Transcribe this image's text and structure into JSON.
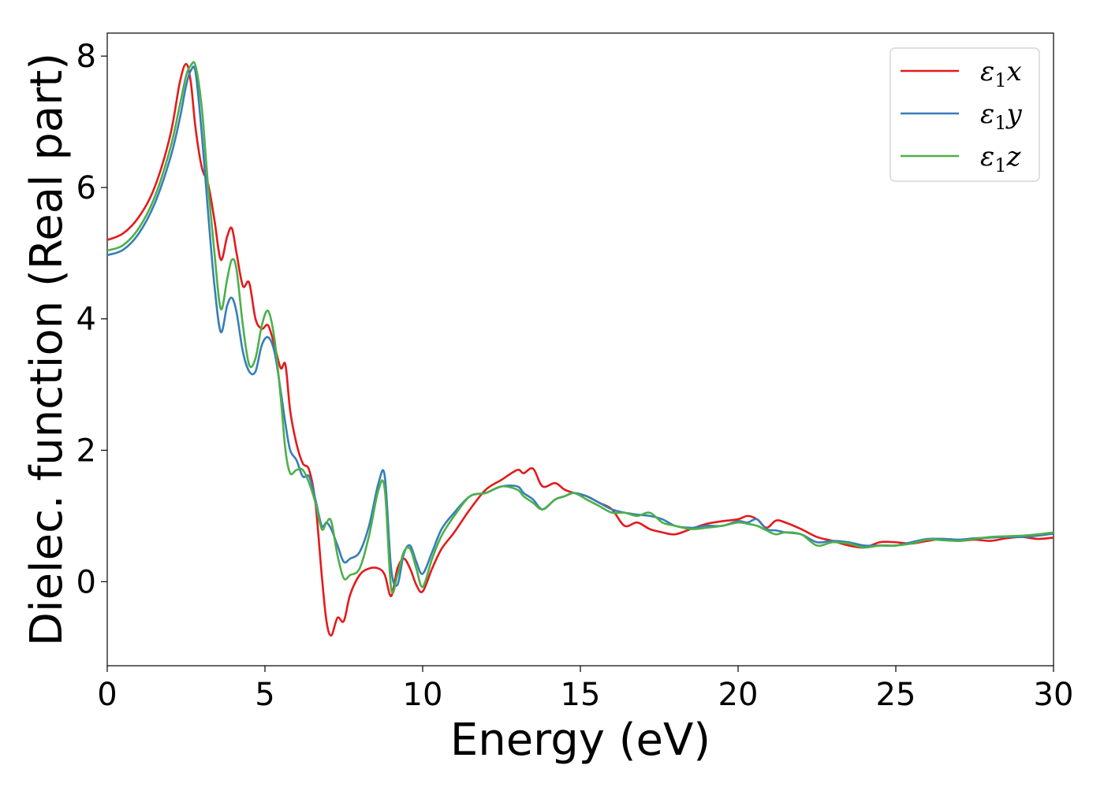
{
  "chart_data": {
    "type": "line",
    "title": "",
    "xlabel": "Energy (eV)",
    "ylabel": "Dielec. function (Real part)",
    "xlim": [
      0,
      30
    ],
    "ylim": [
      -1.28,
      8.35
    ],
    "xticks": [
      0,
      5,
      10,
      15,
      20,
      25,
      30
    ],
    "yticks": [
      0,
      2,
      4,
      6,
      8
    ],
    "grid": false,
    "legend_placement": "top-right",
    "series": [
      {
        "name": "ε1x",
        "legend_base": "ε",
        "legend_sub": "1",
        "legend_suffix": "x",
        "color": "#e41a1c",
        "x": [
          0,
          0.5,
          1.0,
          1.5,
          2.0,
          2.3,
          2.5,
          2.65,
          2.8,
          3.0,
          3.2,
          3.4,
          3.6,
          3.8,
          3.95,
          4.1,
          4.3,
          4.5,
          4.7,
          4.9,
          5.1,
          5.3,
          5.5,
          5.65,
          5.8,
          6.0,
          6.2,
          6.4,
          6.6,
          6.8,
          6.95,
          7.1,
          7.3,
          7.5,
          7.7,
          8.0,
          8.3,
          8.6,
          8.8,
          9.0,
          9.2,
          9.4,
          9.6,
          9.8,
          10.0,
          10.3,
          10.6,
          11.0,
          11.5,
          12.0,
          12.5,
          13.0,
          13.2,
          13.5,
          13.8,
          14.2,
          14.5,
          14.8,
          15.2,
          15.6,
          16.0,
          16.4,
          16.8,
          17.2,
          17.6,
          18.0,
          18.5,
          19.0,
          19.5,
          20.0,
          20.3,
          20.6,
          20.9,
          21.2,
          21.5,
          22.0,
          22.5,
          23.0,
          23.5,
          24.0,
          24.5,
          25.0,
          25.5,
          26.0,
          26.5,
          27.0,
          27.5,
          28.0,
          28.5,
          29.0,
          29.5,
          30.0
        ],
        "y": [
          5.2,
          5.3,
          5.55,
          6.0,
          6.8,
          7.6,
          7.88,
          7.6,
          6.9,
          6.3,
          6.05,
          5.5,
          4.9,
          5.25,
          5.38,
          5.0,
          4.5,
          4.55,
          4.0,
          3.85,
          3.9,
          3.6,
          3.25,
          3.3,
          2.6,
          2.1,
          1.8,
          1.7,
          1.2,
          0.1,
          -0.6,
          -0.82,
          -0.55,
          -0.6,
          -0.2,
          0.1,
          0.2,
          0.2,
          0.1,
          -0.22,
          0.2,
          0.35,
          0.2,
          -0.05,
          -0.15,
          0.2,
          0.5,
          0.75,
          1.1,
          1.4,
          1.55,
          1.7,
          1.65,
          1.72,
          1.45,
          1.5,
          1.4,
          1.35,
          1.3,
          1.2,
          1.1,
          0.85,
          0.9,
          0.8,
          0.75,
          0.72,
          0.8,
          0.88,
          0.92,
          0.95,
          1.0,
          0.95,
          0.82,
          0.93,
          0.9,
          0.8,
          0.68,
          0.62,
          0.55,
          0.52,
          0.6,
          0.6,
          0.58,
          0.62,
          0.65,
          0.62,
          0.64,
          0.62,
          0.66,
          0.68,
          0.65,
          0.67
        ]
      },
      {
        "name": "ε1y",
        "legend_base": "ε",
        "legend_sub": "1",
        "legend_suffix": "y",
        "color": "#377eb8",
        "x": [
          0,
          0.5,
          1.0,
          1.5,
          2.0,
          2.3,
          2.5,
          2.65,
          2.8,
          3.0,
          3.2,
          3.4,
          3.6,
          3.8,
          3.95,
          4.1,
          4.3,
          4.5,
          4.7,
          4.9,
          5.1,
          5.3,
          5.5,
          5.65,
          5.8,
          6.0,
          6.2,
          6.4,
          6.6,
          6.8,
          6.95,
          7.1,
          7.3,
          7.5,
          7.7,
          8.0,
          8.3,
          8.6,
          8.8,
          9.0,
          9.2,
          9.4,
          9.6,
          9.8,
          10.0,
          10.3,
          10.6,
          11.0,
          11.5,
          12.0,
          12.5,
          13.0,
          13.2,
          13.5,
          13.8,
          14.2,
          14.5,
          14.8,
          15.2,
          15.6,
          16.0,
          16.4,
          16.8,
          17.2,
          17.6,
          18.0,
          18.5,
          19.0,
          19.5,
          20.0,
          20.3,
          20.6,
          20.9,
          21.2,
          21.5,
          22.0,
          22.5,
          23.0,
          23.5,
          24.0,
          24.5,
          25.0,
          25.5,
          26.0,
          26.5,
          27.0,
          27.5,
          28.0,
          28.5,
          29.0,
          29.5,
          30.0
        ],
        "y": [
          4.97,
          5.05,
          5.3,
          5.75,
          6.45,
          7.05,
          7.55,
          7.78,
          7.75,
          6.8,
          5.6,
          4.5,
          3.8,
          4.2,
          4.32,
          4.1,
          3.5,
          3.2,
          3.2,
          3.6,
          3.72,
          3.5,
          2.9,
          2.4,
          2.0,
          1.85,
          1.6,
          1.6,
          1.25,
          0.85,
          0.9,
          0.8,
          0.55,
          0.3,
          0.35,
          0.45,
          0.85,
          1.5,
          1.6,
          0.2,
          -0.05,
          0.42,
          0.55,
          0.3,
          0.12,
          0.45,
          0.8,
          1.05,
          1.3,
          1.35,
          1.45,
          1.45,
          1.35,
          1.25,
          1.1,
          1.25,
          1.3,
          1.35,
          1.3,
          1.2,
          1.1,
          1.05,
          1.02,
          1.0,
          0.95,
          0.85,
          0.82,
          0.85,
          0.85,
          0.92,
          0.9,
          0.95,
          0.8,
          0.78,
          0.75,
          0.72,
          0.6,
          0.62,
          0.6,
          0.55,
          0.55,
          0.55,
          0.6,
          0.65,
          0.65,
          0.64,
          0.66,
          0.67,
          0.68,
          0.68,
          0.7,
          0.73
        ]
      },
      {
        "name": "ε1z",
        "legend_base": "ε",
        "legend_sub": "1",
        "legend_suffix": "z",
        "color": "#4daf4a",
        "x": [
          0,
          0.5,
          1.0,
          1.5,
          2.0,
          2.3,
          2.5,
          2.65,
          2.8,
          3.0,
          3.2,
          3.4,
          3.6,
          3.8,
          3.95,
          4.1,
          4.3,
          4.5,
          4.7,
          4.9,
          5.1,
          5.3,
          5.5,
          5.65,
          5.8,
          6.0,
          6.2,
          6.4,
          6.6,
          6.8,
          6.95,
          7.1,
          7.3,
          7.5,
          7.7,
          8.0,
          8.3,
          8.6,
          8.8,
          9.0,
          9.2,
          9.4,
          9.6,
          9.8,
          10.0,
          10.3,
          10.6,
          11.0,
          11.5,
          12.0,
          12.5,
          13.0,
          13.2,
          13.5,
          13.8,
          14.2,
          14.5,
          14.8,
          15.2,
          15.6,
          16.0,
          16.4,
          16.8,
          17.2,
          17.6,
          18.0,
          18.5,
          19.0,
          19.5,
          20.0,
          20.3,
          20.6,
          20.9,
          21.2,
          21.5,
          22.0,
          22.5,
          23.0,
          23.5,
          24.0,
          24.5,
          25.0,
          25.5,
          26.0,
          26.5,
          27.0,
          27.5,
          28.0,
          28.5,
          29.0,
          29.5,
          30.0
        ],
        "y": [
          5.04,
          5.12,
          5.38,
          5.85,
          6.6,
          7.25,
          7.7,
          7.86,
          7.85,
          7.2,
          6.0,
          5.0,
          4.15,
          4.6,
          4.9,
          4.75,
          3.9,
          3.3,
          3.4,
          3.9,
          4.12,
          3.7,
          2.8,
          2.0,
          1.65,
          1.7,
          1.7,
          1.5,
          1.2,
          0.8,
          0.9,
          0.92,
          0.4,
          0.05,
          0.1,
          0.2,
          0.7,
          1.4,
          1.4,
          -0.1,
          0.1,
          0.45,
          0.5,
          0.2,
          -0.08,
          0.35,
          0.7,
          1.0,
          1.3,
          1.35,
          1.45,
          1.4,
          1.3,
          1.2,
          1.1,
          1.25,
          1.3,
          1.35,
          1.25,
          1.15,
          1.05,
          1.05,
          1.0,
          1.05,
          0.9,
          0.85,
          0.8,
          0.82,
          0.85,
          0.9,
          0.88,
          0.85,
          0.78,
          0.72,
          0.75,
          0.72,
          0.55,
          0.6,
          0.58,
          0.52,
          0.55,
          0.55,
          0.58,
          0.64,
          0.63,
          0.62,
          0.65,
          0.68,
          0.69,
          0.7,
          0.72,
          0.75
        ]
      }
    ]
  }
}
